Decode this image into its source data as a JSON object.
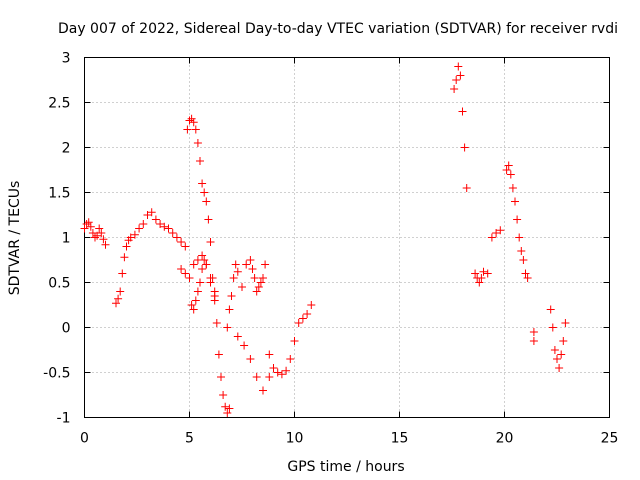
{
  "chart_data": {
    "type": "scatter",
    "title": "Day 007 of 2022, Sidereal Day-to-day VTEC variation (SDTVAR) for receiver rvdi",
    "xlabel": "GPS time / hours",
    "ylabel": "SDTVAR / TECUs",
    "xlim": [
      0,
      25
    ],
    "ylim": [
      -1,
      3
    ],
    "x_ticks": [
      0,
      5,
      10,
      15,
      20,
      25
    ],
    "x_tick_labels": [
      "0",
      "5",
      "10",
      "15",
      "20",
      "25"
    ],
    "y_ticks": [
      -1,
      -0.5,
      0,
      0.5,
      1,
      1.5,
      2,
      2.5,
      3
    ],
    "y_tick_labels": [
      "-1",
      "-0.5",
      "0",
      "0.5",
      "1",
      "1.5",
      "2",
      "2.5",
      "3"
    ],
    "grid": true,
    "marker": "+",
    "color": "#ff0000",
    "series": [
      {
        "name": "SDTVAR",
        "x": [
          0.0,
          0.1,
          0.2,
          0.3,
          0.4,
          0.5,
          0.6,
          0.7,
          0.8,
          0.9,
          1.0,
          1.5,
          1.6,
          1.7,
          1.8,
          1.9,
          2.0,
          2.1,
          2.2,
          2.4,
          2.6,
          2.8,
          3.0,
          3.2,
          3.4,
          3.6,
          3.8,
          4.0,
          4.2,
          4.4,
          4.6,
          4.8,
          4.9,
          5.0,
          5.1,
          5.2,
          5.3,
          5.4,
          5.5,
          5.6,
          5.7,
          5.8,
          5.9,
          6.0,
          6.1,
          6.2,
          6.3,
          6.4,
          6.5,
          6.6,
          6.7,
          6.8,
          6.9,
          4.6,
          4.8,
          5.0,
          5.2,
          5.4,
          5.6,
          5.8,
          6.0,
          6.2,
          5.1,
          5.2,
          5.3,
          5.4,
          5.5,
          5.6,
          5.7,
          5.8,
          6.0,
          6.2,
          6.8,
          6.9,
          7.0,
          7.1,
          7.2,
          7.3,
          7.5,
          7.7,
          7.9,
          8.0,
          8.1,
          8.2,
          8.3,
          8.4,
          8.5,
          8.6,
          8.8,
          9.0,
          9.2,
          9.4,
          9.6,
          9.8,
          10.0,
          10.2,
          10.4,
          10.6,
          10.8,
          7.3,
          7.6,
          7.9,
          8.2,
          8.5,
          8.8,
          17.6,
          17.7,
          17.8,
          17.9,
          18.0,
          18.1,
          18.2,
          18.6,
          18.7,
          18.8,
          18.9,
          19.0,
          19.2,
          19.4,
          19.6,
          19.8,
          20.1,
          20.2,
          20.3,
          20.4,
          20.5,
          20.6,
          20.7,
          20.8,
          20.9,
          21.0,
          21.1,
          21.4,
          21.4,
          22.2,
          22.3,
          22.4,
          22.5,
          22.6,
          22.7,
          22.8,
          22.9
        ],
        "y": [
          1.1,
          1.15,
          1.17,
          1.12,
          1.05,
          1.0,
          1.02,
          1.1,
          1.05,
          0.98,
          0.92,
          0.27,
          0.32,
          0.4,
          0.6,
          0.78,
          0.9,
          0.97,
          1.0,
          1.03,
          1.1,
          1.15,
          1.25,
          1.28,
          1.2,
          1.15,
          1.12,
          1.1,
          1.05,
          1.0,
          0.95,
          0.9,
          2.2,
          2.3,
          2.32,
          2.28,
          2.2,
          2.05,
          1.85,
          1.6,
          1.5,
          1.4,
          1.2,
          0.95,
          0.55,
          0.3,
          0.05,
          -0.3,
          -0.55,
          -0.75,
          -0.88,
          -0.95,
          -0.9,
          0.65,
          0.6,
          0.55,
          0.7,
          0.75,
          0.8,
          0.7,
          0.5,
          0.35,
          0.25,
          0.2,
          0.3,
          0.4,
          0.5,
          0.65,
          0.75,
          0.7,
          0.55,
          0.4,
          0.0,
          0.2,
          0.35,
          0.55,
          0.7,
          0.62,
          0.45,
          0.7,
          0.75,
          0.65,
          0.55,
          0.4,
          0.45,
          0.5,
          0.55,
          0.7,
          -0.3,
          -0.45,
          -0.5,
          -0.52,
          -0.48,
          -0.35,
          -0.15,
          0.05,
          0.1,
          0.15,
          0.25,
          -0.1,
          -0.2,
          -0.35,
          -0.55,
          -0.7,
          -0.55,
          2.65,
          2.75,
          2.9,
          2.8,
          2.4,
          2.0,
          1.55,
          0.6,
          0.55,
          0.5,
          0.55,
          0.62,
          0.6,
          1.0,
          1.05,
          1.08,
          1.75,
          1.8,
          1.7,
          1.55,
          1.4,
          1.2,
          1.0,
          0.85,
          0.75,
          0.6,
          0.55,
          -0.05,
          -0.15,
          0.2,
          0.0,
          -0.25,
          -0.35,
          -0.45,
          -0.3,
          -0.15,
          0.05
        ]
      }
    ]
  }
}
